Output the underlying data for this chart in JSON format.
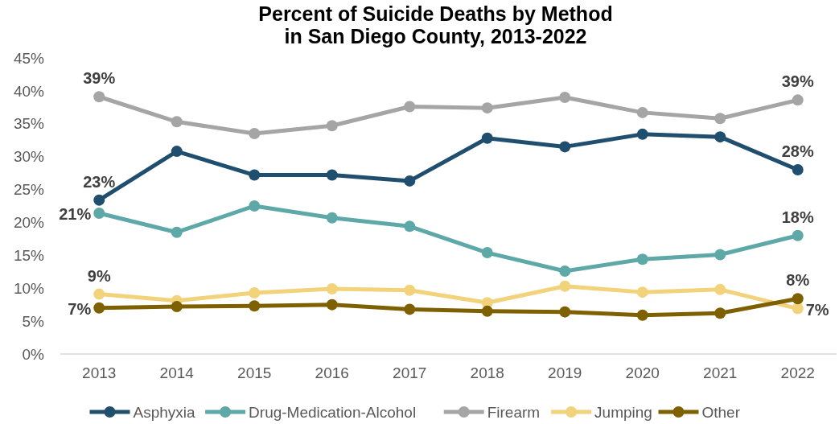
{
  "chart_data": {
    "type": "line",
    "title": "Percent of Suicide Deaths by Method\nin San Diego County, 2013-2022",
    "categories": [
      "2013",
      "2014",
      "2015",
      "2016",
      "2017",
      "2018",
      "2019",
      "2020",
      "2021",
      "2022"
    ],
    "series": [
      {
        "name": "Asphyxia",
        "color": "#1f4e6e",
        "values": [
          23.4,
          30.8,
          27.2,
          27.2,
          26.3,
          32.8,
          31.5,
          33.4,
          33.0,
          28.0
        ],
        "value_labels": [
          "23%",
          null,
          null,
          null,
          null,
          null,
          null,
          null,
          null,
          "28%"
        ]
      },
      {
        "name": "Drug-Medication-Alcohol",
        "color": "#5fa8a8",
        "values": [
          21.4,
          18.5,
          22.5,
          20.7,
          19.4,
          15.4,
          12.6,
          14.4,
          15.1,
          18.0
        ],
        "value_labels": [
          "21%",
          null,
          null,
          null,
          null,
          null,
          null,
          null,
          null,
          "18%"
        ]
      },
      {
        "name": "Firearm",
        "color": "#a5a5a5",
        "values": [
          39.1,
          35.3,
          33.5,
          34.7,
          37.6,
          37.4,
          39.0,
          36.7,
          35.8,
          38.6
        ],
        "value_labels": [
          "39%",
          null,
          null,
          null,
          null,
          null,
          null,
          null,
          null,
          "39%"
        ]
      },
      {
        "name": "Jumping",
        "color": "#f2d27a",
        "values": [
          9.1,
          8.1,
          9.3,
          9.9,
          9.7,
          7.8,
          10.3,
          9.4,
          9.8,
          6.9
        ],
        "value_labels": [
          "9%",
          null,
          null,
          null,
          null,
          null,
          null,
          null,
          null,
          "7%"
        ]
      },
      {
        "name": "Other",
        "color": "#7f6000",
        "values": [
          7.0,
          7.2,
          7.3,
          7.5,
          6.8,
          6.5,
          6.4,
          5.9,
          6.2,
          8.4
        ],
        "value_labels": [
          "7%",
          null,
          null,
          null,
          null,
          null,
          null,
          null,
          null,
          "8%"
        ]
      }
    ],
    "ylim": [
      0,
      45
    ],
    "yticks": [
      {
        "value": 0,
        "label": "0%"
      },
      {
        "value": 5,
        "label": "5%"
      },
      {
        "value": 10,
        "label": "10%"
      },
      {
        "value": 15,
        "label": "15%"
      },
      {
        "value": 20,
        "label": "20%"
      },
      {
        "value": 25,
        "label": "25%"
      },
      {
        "value": 30,
        "label": "30%"
      },
      {
        "value": 35,
        "label": "35%"
      },
      {
        "value": 40,
        "label": "40%"
      },
      {
        "value": 45,
        "label": "45%"
      }
    ],
    "legend": "bottom",
    "marker": "circle",
    "line_style": "solid"
  }
}
